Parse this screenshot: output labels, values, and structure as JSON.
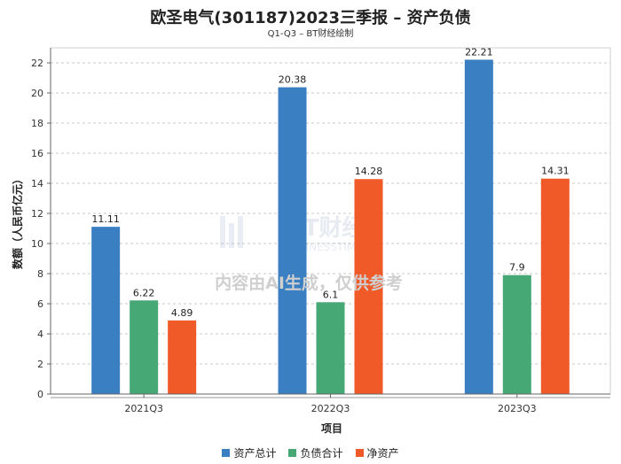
{
  "title": "欧圣电气(301187)2023三季报 – 资产负债",
  "subtitle": "Q1-Q3 – BT财经绘制",
  "watermark": {
    "brand": "BT财经",
    "brand_en": "BUSINESSTIMES",
    "notice": "内容由AI生成，仅供参考"
  },
  "chart_data": {
    "type": "bar",
    "categories": [
      "2021Q3",
      "2022Q3",
      "2023Q3"
    ],
    "series": [
      {
        "name": "资产总计",
        "color": "#3a7fc1",
        "values": [
          11.11,
          20.38,
          22.21
        ]
      },
      {
        "name": "负债合计",
        "color": "#45a875",
        "values": [
          6.22,
          6.1,
          7.9
        ]
      },
      {
        "name": "净资产",
        "color": "#f05a28",
        "values": [
          4.89,
          14.28,
          14.31
        ]
      }
    ],
    "xlabel": "项目",
    "ylabel": "数额（人民币亿元）",
    "ylim": [
      0,
      23
    ],
    "yticks": [
      0,
      2,
      4,
      6,
      8,
      10,
      12,
      14,
      16,
      18,
      20,
      22
    ],
    "grid": true,
    "legend_position": "bottom"
  }
}
